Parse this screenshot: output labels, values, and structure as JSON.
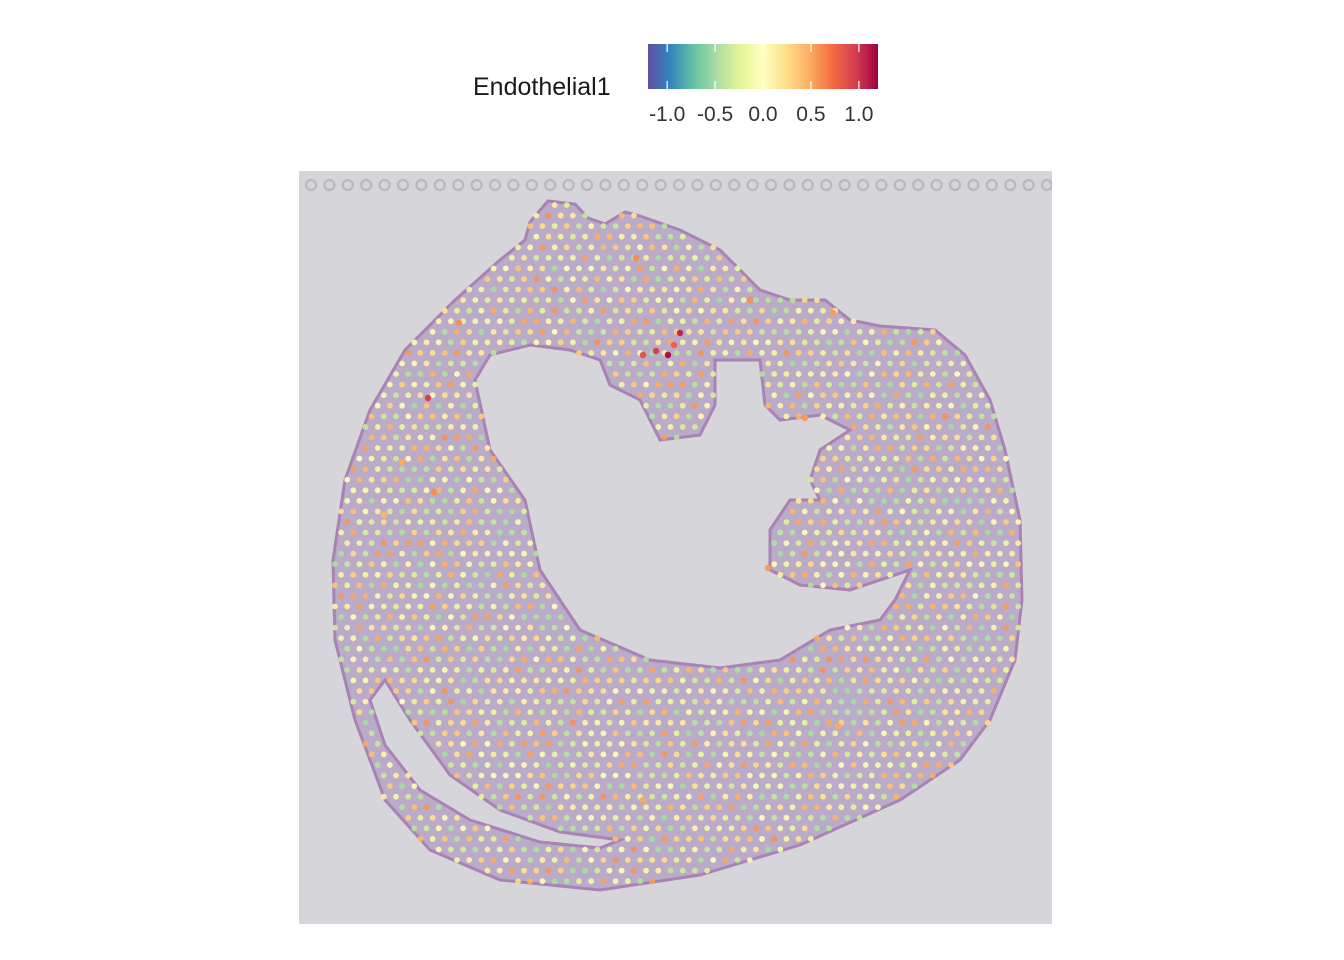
{
  "chart_data": {
    "type": "scatter",
    "title": "",
    "xlabel": "",
    "ylabel": "",
    "legend": {
      "title": "Endothelial1",
      "placement": "top",
      "range": [
        -1.2,
        1.2
      ],
      "ticks": [
        -1.0,
        -0.5,
        0.0,
        0.5,
        1.0
      ],
      "tick_labels": [
        "-1.0",
        "-0.5",
        "0.0",
        "0.5",
        "1.0"
      ],
      "colormap": [
        "#5e4fa2",
        "#3288bd",
        "#66c2a5",
        "#abdda4",
        "#e6f598",
        "#ffffbf",
        "#fee08b",
        "#fdae61",
        "#f46d43",
        "#d53e4f",
        "#9e0142"
      ]
    },
    "background": {
      "slide_color": "#d6d5d9",
      "tissue_color": "#b9a9c8",
      "tissue_edge_color": "#a77fb4"
    },
    "series": [
      {
        "values_note_free": true,
        "high_spots": [
          {
            "x": 680,
            "y": 333,
            "value": 1.05
          },
          {
            "x": 668,
            "y": 355,
            "value": 1.15
          },
          {
            "x": 656,
            "y": 351,
            "value": 0.95
          },
          {
            "x": 643,
            "y": 355,
            "value": 0.85
          },
          {
            "x": 674,
            "y": 345,
            "value": 0.8
          },
          {
            "x": 428,
            "y": 398,
            "value": 0.95
          },
          {
            "x": 459,
            "y": 323,
            "value": 0.6
          },
          {
            "x": 636,
            "y": 258,
            "value": 0.6
          },
          {
            "x": 750,
            "y": 300,
            "value": 0.6
          },
          {
            "x": 833,
            "y": 313,
            "value": 0.55
          },
          {
            "x": 805,
            "y": 418,
            "value": 0.55
          },
          {
            "x": 434,
            "y": 492,
            "value": 0.6
          },
          {
            "x": 402,
            "y": 462,
            "value": 0.5
          },
          {
            "x": 768,
            "y": 568,
            "value": 0.55
          },
          {
            "x": 643,
            "y": 800,
            "value": 0.5
          },
          {
            "x": 838,
            "y": 726,
            "value": 0.5
          },
          {
            "x": 384,
            "y": 515,
            "value": 0.45
          }
        ],
        "typical_value_range": [
          -0.5,
          0.6
        ]
      }
    ]
  }
}
